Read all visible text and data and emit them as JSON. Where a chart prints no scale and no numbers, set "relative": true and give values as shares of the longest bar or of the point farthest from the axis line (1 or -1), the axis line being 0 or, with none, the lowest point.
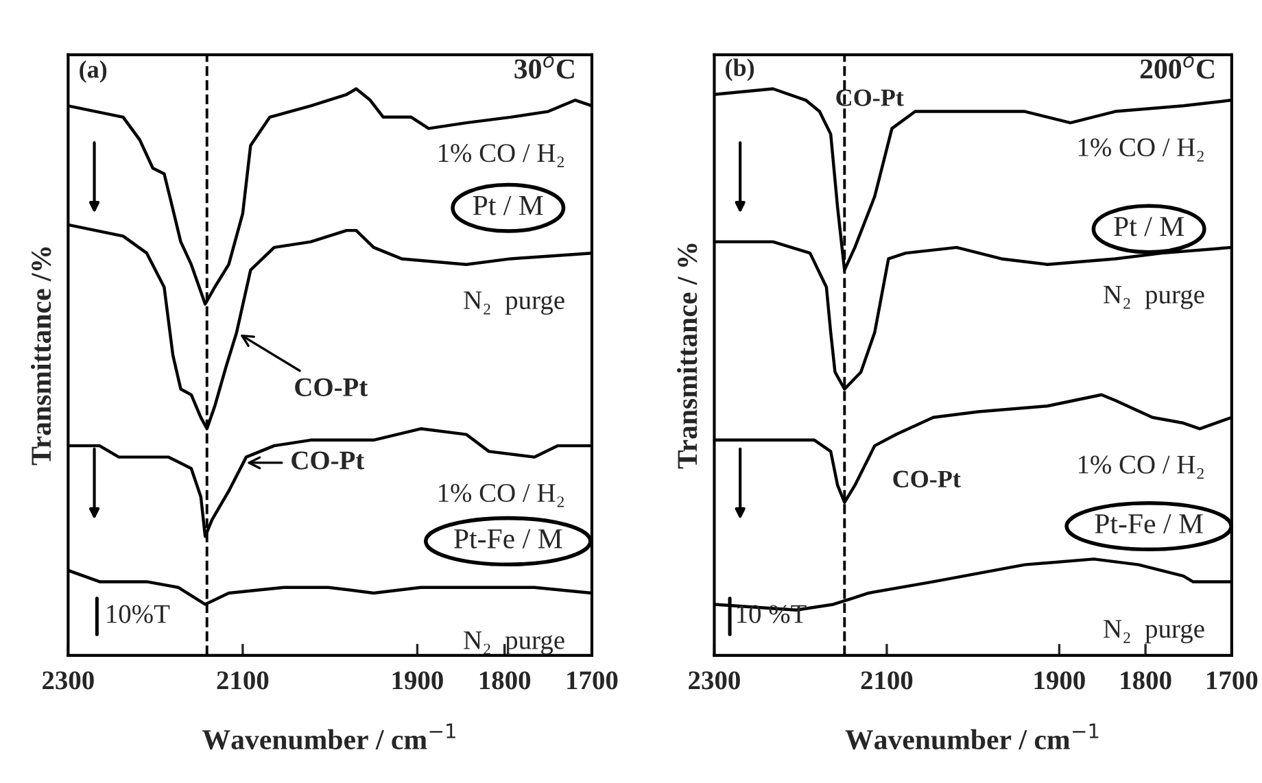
{
  "chart_data": [
    {
      "type": "line",
      "relative": true,
      "xlabel": "Wavenumber / cm$^{−1}$",
      "ylabel": "Transmittance /%",
      "xlim": [
        2300,
        1700
      ],
      "xticks": [
        2300,
        2100,
        1900,
        1800,
        1700
      ],
      "legend": false,
      "grid": false,
      "marker": "none",
      "line_style": "solid",
      "tick_labels": "x",
      "ref_lines": [
        {
          "axis": "x",
          "value": 2141,
          "color": "#000000",
          "line_style": "dashed"
        }
      ],
      "annotations": [
        "(a)",
        "30$^{o}$C",
        "Pt / M",
        "Pt-Fe / M",
        {
          "text": "CO-Pt",
          "x": 2107,
          "y": 0.57
        },
        {
          "text": "CO-Pt",
          "x": 2100,
          "y": 0.34
        },
        "10%T"
      ],
      "series": [
        {
          "name": "1% CO / H₂",
          "color": "#000000",
          "x": [
            2300,
            2237,
            2218,
            2203,
            2190,
            2182,
            2171,
            2159,
            2143,
            2132,
            2116,
            2100,
            2091,
            2069,
            2022,
            1981,
            1970,
            1954,
            1939,
            1907,
            1887,
            1844,
            1793,
            1750,
            1719,
            1700
          ],
          "values": [
            0.97,
            0.95,
            0.91,
            0.86,
            0.85,
            0.8,
            0.73,
            0.69,
            0.62,
            0.65,
            0.69,
            0.78,
            0.9,
            0.95,
            0.97,
            0.99,
            1.0,
            0.98,
            0.95,
            0.95,
            0.93,
            0.94,
            0.95,
            0.96,
            0.98,
            0.97
          ]
        },
        {
          "name": "N₂  purge",
          "color": "#000000",
          "x": [
            2300,
            2237,
            2210,
            2190,
            2180,
            2171,
            2159,
            2148,
            2141,
            2132,
            2119,
            2107,
            2091,
            2064,
            2022,
            1981,
            1970,
            1950,
            1918,
            1844,
            1793,
            1700
          ],
          "values": [
            0.76,
            0.74,
            0.71,
            0.65,
            0.53,
            0.47,
            0.46,
            0.42,
            0.4,
            0.44,
            0.51,
            0.57,
            0.68,
            0.72,
            0.73,
            0.75,
            0.75,
            0.72,
            0.7,
            0.69,
            0.7,
            0.71
          ]
        },
        {
          "name": "1% CO / H₂",
          "color": "#000000",
          "x": [
            2300,
            2264,
            2242,
            2210,
            2185,
            2159,
            2148,
            2143,
            2135,
            2116,
            2096,
            2064,
            2022,
            1950,
            1896,
            1844,
            1818,
            1766,
            1739,
            1700
          ],
          "values": [
            0.37,
            0.37,
            0.35,
            0.35,
            0.35,
            0.33,
            0.28,
            0.21,
            0.24,
            0.29,
            0.35,
            0.37,
            0.38,
            0.38,
            0.4,
            0.39,
            0.36,
            0.35,
            0.37,
            0.37
          ]
        },
        {
          "name": "N₂  purge",
          "color": "#000000",
          "x": [
            2300,
            2264,
            2210,
            2174,
            2143,
            2116,
            2053,
            2002,
            1950,
            1896,
            1844,
            1766,
            1700
          ],
          "values": [
            0.15,
            0.13,
            0.13,
            0.12,
            0.09,
            0.11,
            0.12,
            0.12,
            0.11,
            0.12,
            0.12,
            0.12,
            0.11
          ]
        }
      ]
    },
    {
      "type": "line",
      "relative": true,
      "xlabel": "Wavenumber / cm$^{−1}$",
      "ylabel": "Transmittance / %",
      "xlim": [
        2300,
        1700
      ],
      "xticks": [
        2300,
        2100,
        1900,
        1800,
        1700
      ],
      "legend": false,
      "grid": false,
      "marker": "none",
      "line_style": "solid",
      "tick_labels": "x",
      "ref_lines": [
        {
          "axis": "x",
          "value": 2149,
          "color": "#000000",
          "line_style": "dashed"
        }
      ],
      "annotations": [
        "(b)",
        "200$^{o}$C",
        "Pt / M",
        "Pt-Fe / M",
        "CO-Pt",
        "CO-Pt",
        "10 %T"
      ],
      "series": [
        {
          "name": "1% CO / H₂",
          "color": "#000000",
          "x": [
            2300,
            2232,
            2194,
            2178,
            2165,
            2157,
            2149,
            2137,
            2114,
            2094,
            2067,
            1994,
            1940,
            1887,
            1835,
            1756,
            1700
          ],
          "values": [
            0.99,
            1.0,
            0.98,
            0.96,
            0.92,
            0.79,
            0.68,
            0.72,
            0.81,
            0.93,
            0.96,
            0.96,
            0.96,
            0.94,
            0.96,
            0.97,
            0.98
          ]
        },
        {
          "name": "N₂  purge",
          "color": "#000000",
          "x": [
            2300,
            2232,
            2189,
            2170,
            2165,
            2160,
            2149,
            2130,
            2114,
            2098,
            2078,
            2019,
            1967,
            1914,
            1835,
            1781,
            1700
          ],
          "values": [
            0.73,
            0.73,
            0.71,
            0.65,
            0.57,
            0.5,
            0.47,
            0.5,
            0.57,
            0.7,
            0.71,
            0.72,
            0.7,
            0.69,
            0.7,
            0.71,
            0.72
          ]
        },
        {
          "name": "1% CO / H₂",
          "color": "#000000",
          "x": [
            2300,
            2184,
            2165,
            2157,
            2149,
            2137,
            2114,
            2089,
            2046,
            1994,
            1914,
            1851,
            1835,
            1792,
            1756,
            1737,
            1700
          ],
          "values": [
            0.38,
            0.38,
            0.36,
            0.3,
            0.27,
            0.3,
            0.37,
            0.39,
            0.42,
            0.43,
            0.44,
            0.46,
            0.45,
            0.42,
            0.41,
            0.4,
            0.42
          ]
        },
        {
          "name": "N₂  purge",
          "color": "#000000",
          "x": [
            2300,
            2205,
            2162,
            2141,
            2121,
            2046,
            1940,
            1860,
            1808,
            1756,
            1745,
            1700
          ],
          "values": [
            0.09,
            0.08,
            0.09,
            0.1,
            0.11,
            0.13,
            0.16,
            0.17,
            0.16,
            0.14,
            0.13,
            0.13
          ]
        }
      ]
    }
  ]
}
